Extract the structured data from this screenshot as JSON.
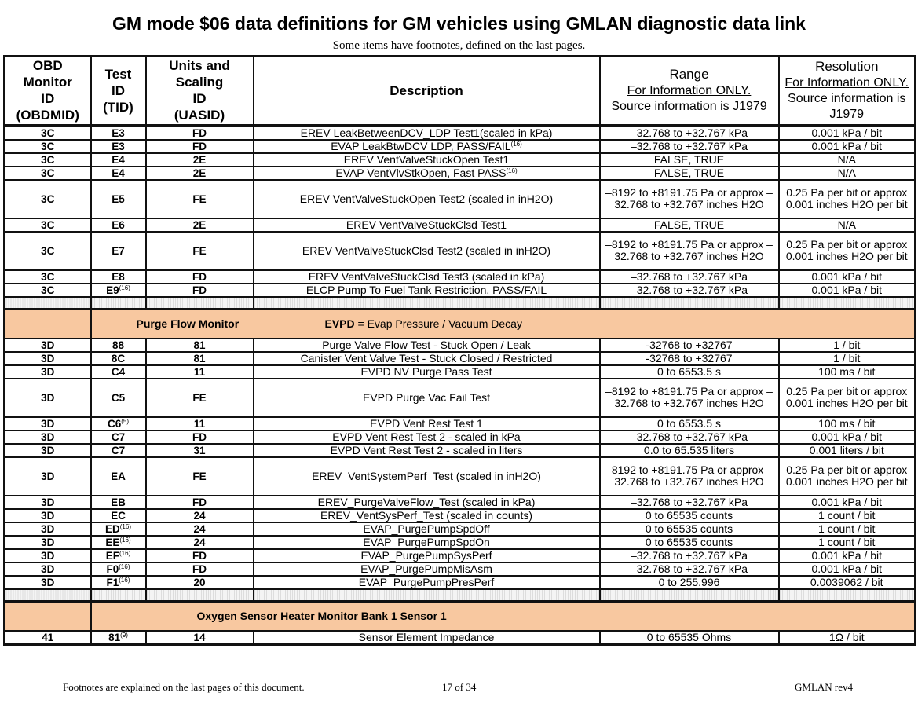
{
  "title": "GM mode $06 data definitions for GM vehicles using GMLAN diagnostic data link",
  "subtitle": "Some items have footnotes, defined on the last pages.",
  "headers": {
    "obdmid": [
      "OBD",
      "Monitor",
      "ID",
      "(OBDMID)"
    ],
    "tid": [
      "Test",
      "ID",
      "(TID)"
    ],
    "uasid": [
      "Units and",
      "Scaling",
      "ID",
      "(UASID)"
    ],
    "description": "Description",
    "range": {
      "title": "Range",
      "note": "For Information ONLY.",
      "source": "Source information is J1979"
    },
    "resolution": {
      "title": "Resolution",
      "note": "For Information ONLY.",
      "source": "Source information is J1979"
    }
  },
  "rows": [
    {
      "type": "n",
      "obdmid": "3C",
      "tid": "E3",
      "uasid": "FD",
      "desc": "EREV LeakBetweenDCV_LDP Test1(scaled in kPa)",
      "range": "–32.768 to +32.767 kPa",
      "res": "0.001 kPa / bit"
    },
    {
      "type": "n",
      "obdmid": "3C",
      "tid": "E3",
      "uasid": "FD",
      "desc": "EVAP LeakBtwDCV LDP,  PASS/FAIL",
      "desc_sup": "(16)",
      "range": "–32.768 to +32.767 kPa",
      "res": "0.001 kPa / bit"
    },
    {
      "type": "n",
      "obdmid": "3C",
      "tid": "E4",
      "uasid": "2E",
      "desc": "EREV VentValveStuckOpen Test1",
      "range": "FALSE, TRUE",
      "res": "N/A"
    },
    {
      "type": "n",
      "obdmid": "3C",
      "tid": "E4",
      "uasid": "2E",
      "desc": "EVAP VentVlvStkOpen,  Fast PASS",
      "desc_sup": "(16)",
      "range": "FALSE, TRUE",
      "res": "N/A"
    },
    {
      "type": "t",
      "obdmid": "3C",
      "tid": "E5",
      "uasid": "FE",
      "desc": "EREV VentValveStuckOpen Test2 (scaled in inH2O)",
      "range": "–8192 to +8191.75 Pa or approx –32.768 to +32.767 inches H2O",
      "res": "0.25 Pa per bit or approx 0.001 inches H2O per bit"
    },
    {
      "type": "n",
      "obdmid": "3C",
      "tid": "E6",
      "uasid": "2E",
      "desc": "EREV VentValveStuckClsd Test1",
      "range": "FALSE, TRUE",
      "res": "N/A"
    },
    {
      "type": "t",
      "obdmid": "3C",
      "tid": "E7",
      "uasid": "FE",
      "desc": "EREV VentValveStuckClsd Test2 (scaled in inH2O)",
      "range": "–8192 to +8191.75 Pa or approx –32.768 to +32.767 inches H2O",
      "res": "0.25 Pa per bit or approx 0.001 inches H2O per bit"
    },
    {
      "type": "n",
      "obdmid": "3C",
      "tid": "E8",
      "uasid": "FD",
      "desc": "EREV VentValveStuckClsd Test3 (scaled in kPa)",
      "range": "–32.768 to +32.767 kPa",
      "res": "0.001 kPa / bit"
    },
    {
      "type": "n",
      "obdmid": "3C",
      "tid": "E9",
      "tid_sup": "(16)",
      "uasid": "FD",
      "desc": "ELCP Pump To Fuel Tank Restriction,  PASS/FAIL",
      "range": "–32.768 to +32.767 kPa",
      "res": "0.001 kPa / bit"
    },
    {
      "type": "g"
    },
    {
      "type": "s",
      "label": "Purge Flow Monitor",
      "note_bold": "EVPD",
      "note": " = Evap Pressure / Vacuum Decay"
    },
    {
      "type": "n",
      "obdmid": "3D",
      "tid": "88",
      "uasid": "81",
      "desc": "Purge Valve Flow Test - Stuck Open / Leak",
      "range": "-32768 to +32767",
      "res": "1 / bit"
    },
    {
      "type": "n",
      "obdmid": "3D",
      "tid": "8C",
      "uasid": "81",
      "desc": "Canister Vent Valve Test - Stuck Closed / Restricted",
      "range": "-32768 to +32767",
      "res": "1 / bit"
    },
    {
      "type": "n",
      "obdmid": "3D",
      "tid": "C4",
      "uasid": "11",
      "desc": "EVPD NV Purge Pass Test",
      "range": "0 to 6553.5 s",
      "res": "100 ms / bit"
    },
    {
      "type": "t",
      "obdmid": "3D",
      "tid": "C5",
      "uasid": "FE",
      "desc": "EVPD Purge Vac Fail Test",
      "range": "–8192 to +8191.75 Pa or approx –32.768 to +32.767 inches H2O",
      "res": "0.25 Pa per bit or approx 0.001 inches H2O per bit"
    },
    {
      "type": "n",
      "obdmid": "3D",
      "tid": "C6",
      "tid_sup": "(5)",
      "uasid": "11",
      "desc": "EVPD Vent Rest Test 1",
      "range": "0 to 6553.5 s",
      "res": "100 ms / bit"
    },
    {
      "type": "n",
      "obdmid": "3D",
      "tid": "C7",
      "uasid": "FD",
      "desc": "EVPD Vent Rest Test 2 - scaled in kPa",
      "range": "–32.768 to +32.767 kPa",
      "res": "0.001 kPa / bit"
    },
    {
      "type": "n",
      "obdmid": "3D",
      "tid": "C7",
      "uasid": "31",
      "desc": "EVPD Vent Rest Test 2 - scaled in liters",
      "range": "0.0 to 65.535 liters",
      "res": "0.001 liters / bit"
    },
    {
      "type": "t",
      "obdmid": "3D",
      "tid": "EA",
      "uasid": "FE",
      "desc": "EREV_VentSystemPerf_Test (scaled in inH2O)",
      "range": "–8192 to +8191.75 Pa or approx –32.768 to +32.767 inches H2O",
      "res": "0.25 Pa per bit or approx 0.001 inches H2O per bit"
    },
    {
      "type": "n",
      "obdmid": "3D",
      "tid": "EB",
      "uasid": "FD",
      "desc": "EREV_PurgeValveFlow_Test (scaled in kPa)",
      "range": "–32.768 to +32.767 kPa",
      "res": "0.001 kPa / bit"
    },
    {
      "type": "n",
      "obdmid": "3D",
      "tid": "EC",
      "uasid": "24",
      "desc": "EREV_VentSysPerf_Test (scaled in counts)",
      "range": "0 to 65535 counts",
      "res": "1 count / bit"
    },
    {
      "type": "n",
      "obdmid": "3D",
      "tid": "ED",
      "tid_sup": "(16)",
      "uasid": "24",
      "desc": "EVAP_PurgePumpSpdOff",
      "range": "0 to 65535 counts",
      "res": "1 count / bit"
    },
    {
      "type": "n",
      "obdmid": "3D",
      "tid": "EE",
      "tid_sup": "(16)",
      "uasid": "24",
      "desc": "EVAP_PurgePumpSpdOn",
      "range": "0 to 65535 counts",
      "res": "1 count / bit"
    },
    {
      "type": "n",
      "obdmid": "3D",
      "tid": "EF",
      "tid_sup": "(16)",
      "uasid": "FD",
      "desc": "EVAP_PurgePumpSysPerf",
      "range": "–32.768 to +32.767 kPa",
      "res": "0.001 kPa / bit"
    },
    {
      "type": "n",
      "obdmid": "3D",
      "tid": "F0",
      "tid_sup": "(16)",
      "uasid": "FD",
      "desc": "EVAP_PurgePumpMisAsm",
      "range": "–32.768 to +32.767 kPa",
      "res": "0.001 kPa / bit"
    },
    {
      "type": "n",
      "obdmid": "3D",
      "tid": "F1",
      "tid_sup": "(16)",
      "uasid": "20",
      "desc": "EVAP_PurgePumpPresPerf",
      "range": "0 to 255.996",
      "res": "0.0039062 / bit"
    },
    {
      "type": "g"
    },
    {
      "type": "s",
      "label": "Oxygen Sensor Heater Monitor Bank 1 Sensor 1"
    },
    {
      "type": "n",
      "obdmid": "41",
      "tid": "81",
      "tid_sup": "(9)",
      "uasid": "14",
      "desc": "Sensor Element Impedance",
      "range": "0 to 65535 Ohms",
      "res": "1Ω / bit"
    }
  ],
  "colors": {
    "section_bg": "#f8c8a0",
    "border": "#111111"
  },
  "footer": {
    "left": "Footnotes are explained on the last pages of this document.",
    "page": "17 of 34",
    "right": "GMLAN  rev4"
  }
}
